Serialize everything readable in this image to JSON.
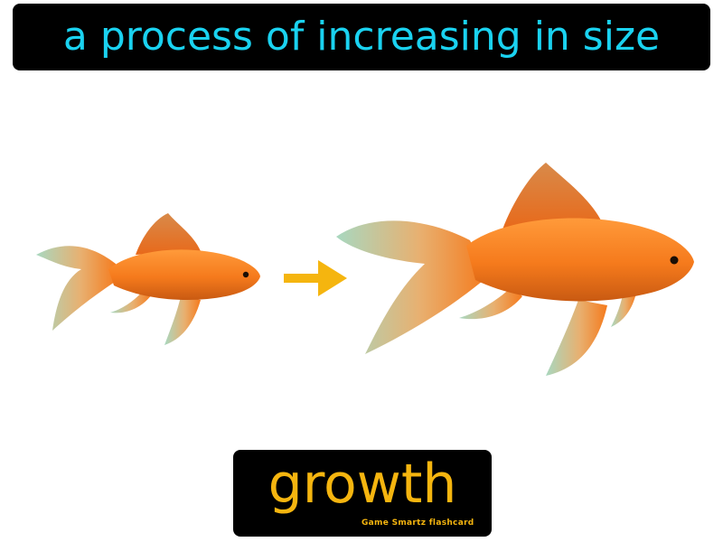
{
  "definition": {
    "text": "a process of increasing in size"
  },
  "term": {
    "word": "growth",
    "credit": "Game Smartz flashcard"
  },
  "illustration": {
    "subjects": [
      "small-goldfish",
      "arrow",
      "large-goldfish"
    ]
  },
  "colors": {
    "definition_text": "#1ad2f0",
    "term_text": "#f5b50f",
    "arrow": "#f5b50f",
    "fish_body": "#f57a1c",
    "fish_fin": "#a8d8c0",
    "bar_background": "#000000"
  }
}
